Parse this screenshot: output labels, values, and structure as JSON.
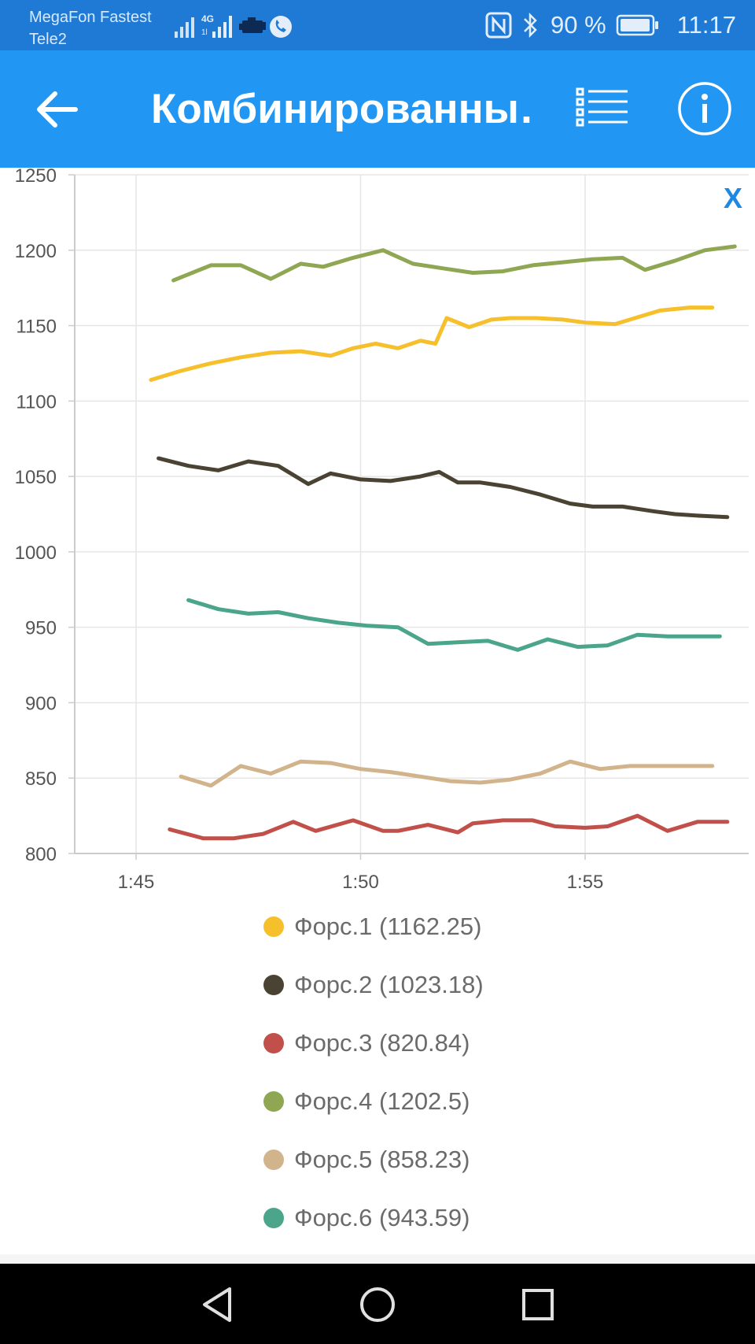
{
  "status_bar": {
    "carrier_1": "MegaFon Fastest",
    "carrier_2": "Tele2",
    "battery": "90 %",
    "time": "11:17",
    "icons": [
      "signal-icon",
      "4g-signal-icon",
      "engine-icon",
      "call-icon",
      "nfc-icon",
      "bluetooth-icon",
      "battery-icon"
    ]
  },
  "app_bar": {
    "title": "Комбинированны…",
    "icons": [
      "back-arrow-icon",
      "list-icon",
      "info-icon"
    ]
  },
  "close_label": "X",
  "colors": {
    "app_bar": "#2196f3",
    "status_bar": "#1e7ad4",
    "close": "#1e88e5"
  },
  "chart_data": {
    "type": "line",
    "ylim": [
      800,
      1250
    ],
    "y_ticks": [
      "1250",
      "1200",
      "1150",
      "1100",
      "1050",
      "1000",
      "950",
      "900",
      "850",
      "800"
    ],
    "x_ticks": [
      "1:45",
      "1:50",
      "1:55"
    ],
    "grid": true,
    "legend_placement": "bottom",
    "series": [
      {
        "name": "Форс.1 (1162.25)",
        "color": "#f6c02d",
        "x": [
          "1:45:20",
          "1:46:00",
          "1:46:40",
          "1:47:20",
          "1:48:00",
          "1:48:40",
          "1:49:20",
          "1:49:50",
          "1:50:20",
          "1:50:50",
          "1:51:20",
          "1:51:40",
          "1:51:55",
          "1:52:25",
          "1:52:55",
          "1:53:20",
          "1:53:55",
          "1:54:30",
          "1:55:00",
          "1:55:40",
          "1:56:20",
          "1:56:40",
          "1:57:20",
          "1:57:50"
        ],
        "values": [
          1114,
          1120,
          1125,
          1129,
          1132,
          1133,
          1130,
          1135,
          1138,
          1135,
          1140,
          1138,
          1155,
          1149,
          1154,
          1155,
          1155,
          1154,
          1152,
          1151,
          1157,
          1160,
          1162,
          1162
        ]
      },
      {
        "name": "Форс.2 (1023.18)",
        "color": "#4a4233",
        "x": [
          "1:45:30",
          "1:46:10",
          "1:46:50",
          "1:47:30",
          "1:48:10",
          "1:48:50",
          "1:49:20",
          "1:50:00",
          "1:50:40",
          "1:51:20",
          "1:51:45",
          "1:52:10",
          "1:52:40",
          "1:53:20",
          "1:54:00",
          "1:54:40",
          "1:55:10",
          "1:55:50",
          "1:56:30",
          "1:57:00",
          "1:57:30",
          "1:58:10"
        ],
        "values": [
          1062,
          1057,
          1054,
          1060,
          1057,
          1045,
          1052,
          1048,
          1047,
          1050,
          1053,
          1046,
          1046,
          1043,
          1038,
          1032,
          1030,
          1030,
          1027,
          1025,
          1024,
          1023
        ]
      },
      {
        "name": "Форс.3 (820.84)",
        "color": "#c2504a",
        "x": [
          "1:45:45",
          "1:46:30",
          "1:47:10",
          "1:47:50",
          "1:48:30",
          "1:49:00",
          "1:49:50",
          "1:50:30",
          "1:50:50",
          "1:51:30",
          "1:52:10",
          "1:52:30",
          "1:53:10",
          "1:53:50",
          "1:54:20",
          "1:55:00",
          "1:55:30",
          "1:56:10",
          "1:56:50",
          "1:57:30",
          "1:58:10"
        ],
        "values": [
          816,
          810,
          810,
          813,
          821,
          815,
          822,
          815,
          815,
          819,
          814,
          820,
          822,
          822,
          818,
          817,
          818,
          825,
          815,
          821,
          821
        ]
      },
      {
        "name": "Форс.4 (1202.5)",
        "color": "#8fa653",
        "x": [
          "1:45:50",
          "1:46:40",
          "1:47:20",
          "1:48:00",
          "1:48:40",
          "1:49:10",
          "1:49:50",
          "1:50:30",
          "1:51:10",
          "1:51:50",
          "1:52:30",
          "1:53:10",
          "1:53:50",
          "1:54:30",
          "1:55:10",
          "1:55:50",
          "1:56:20",
          "1:57:00",
          "1:57:40",
          "1:58:20"
        ],
        "values": [
          1180,
          1190,
          1190,
          1181,
          1191,
          1189,
          1195,
          1200,
          1191,
          1188,
          1185,
          1186,
          1190,
          1192,
          1194,
          1195,
          1187,
          1193,
          1200,
          1202.5
        ]
      },
      {
        "name": "Форс.5 (858.23)",
        "color": "#d2b48c",
        "x": [
          "1:46:00",
          "1:46:40",
          "1:47:20",
          "1:48:00",
          "1:48:40",
          "1:49:20",
          "1:50:00",
          "1:50:40",
          "1:51:20",
          "1:52:00",
          "1:52:40",
          "1:53:20",
          "1:54:00",
          "1:54:40",
          "1:55:20",
          "1:56:00",
          "1:56:40",
          "1:57:20",
          "1:57:50"
        ],
        "values": [
          851,
          845,
          858,
          853,
          861,
          860,
          856,
          854,
          851,
          848,
          847,
          849,
          853,
          861,
          856,
          858,
          858,
          858,
          858
        ]
      },
      {
        "name": "Форс.6 (943.59)",
        "color": "#4aa58a",
        "x": [
          "1:46:10",
          "1:46:50",
          "1:47:30",
          "1:48:10",
          "1:48:50",
          "1:49:30",
          "1:50:10",
          "1:50:50",
          "1:51:30",
          "1:52:10",
          "1:52:50",
          "1:53:30",
          "1:54:10",
          "1:54:50",
          "1:55:30",
          "1:56:10",
          "1:56:50",
          "1:57:30",
          "1:58:00"
        ],
        "values": [
          968,
          962,
          959,
          960,
          956,
          953,
          951,
          950,
          939,
          940,
          941,
          935,
          942,
          937,
          938,
          945,
          944,
          944,
          944
        ]
      }
    ]
  }
}
